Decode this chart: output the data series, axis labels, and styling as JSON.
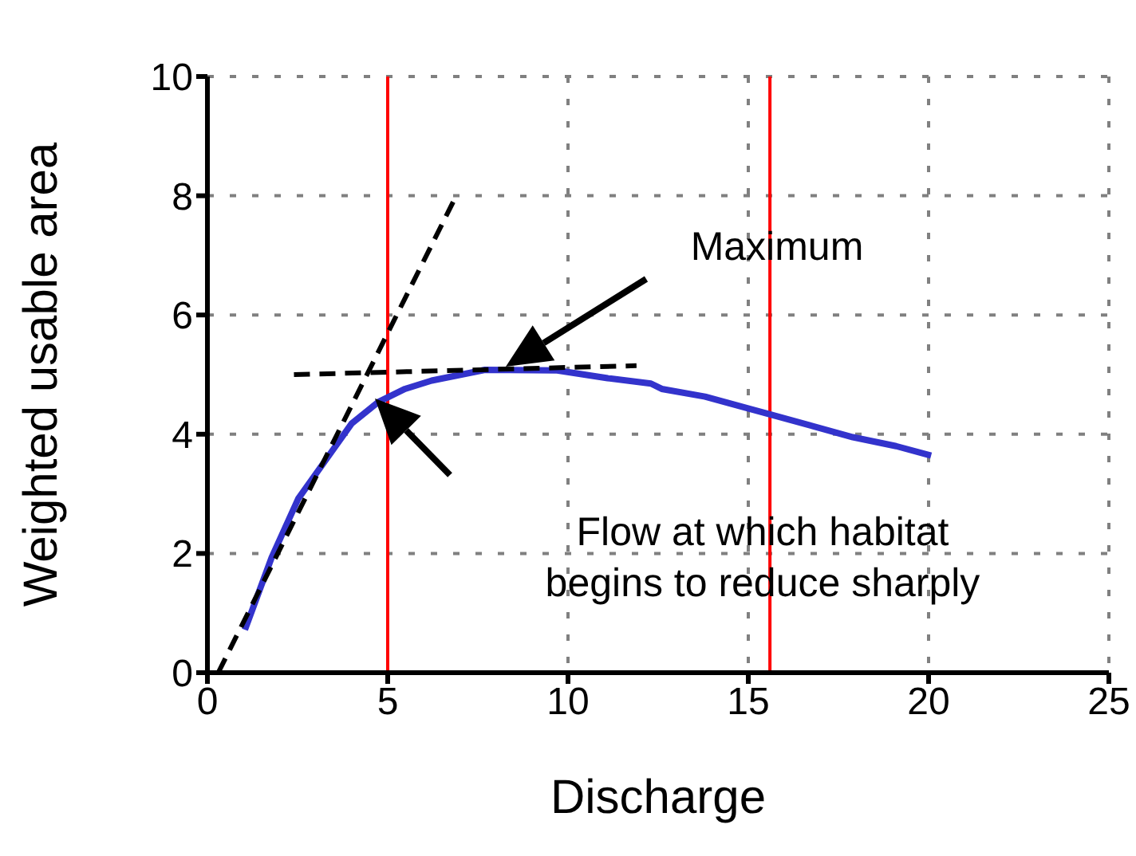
{
  "chart_data": {
    "type": "line",
    "xlabel": "Discharge",
    "ylabel": "Weighted usable area",
    "xlim": [
      0,
      25
    ],
    "xticks": [
      0,
      5,
      10,
      15,
      20,
      25
    ],
    "ylim": [
      0,
      10
    ],
    "yticks": [
      0,
      2,
      4,
      6,
      8,
      10
    ],
    "grid": true,
    "legend": false,
    "marker": "none",
    "series": [
      {
        "color": "#3333cc",
        "line_style": "solid",
        "x": [
          1.04,
          1.78,
          2.52,
          3.26,
          4.0,
          4.74,
          5.48,
          6.22,
          7.7,
          9.7,
          11.1,
          12.3,
          12.6,
          13.8,
          15.56,
          17.9,
          19.1,
          20.07
        ],
        "values": [
          0.72,
          1.93,
          2.92,
          3.55,
          4.18,
          4.54,
          4.76,
          4.9,
          5.08,
          5.07,
          4.94,
          4.85,
          4.76,
          4.63,
          4.34,
          3.95,
          3.8,
          3.64
        ]
      },
      {
        "color": "#000000",
        "line_style": "dashed",
        "x": [
          0.3,
          6.9
        ],
        "values": [
          0,
          8
        ]
      },
      {
        "color": "#000000",
        "line_style": "dashed",
        "x": [
          2.4,
          11.9
        ],
        "values": [
          5.0,
          5.15
        ]
      }
    ],
    "ref_lines": [
      {
        "axis": "x",
        "value": 5,
        "color": "#ff0000"
      },
      {
        "axis": "x",
        "value": 15.6,
        "color": "#ff0000"
      }
    ],
    "annotations": [
      "Maximum",
      "Flow at which habitat\nbegins to reduce sharply"
    ]
  }
}
